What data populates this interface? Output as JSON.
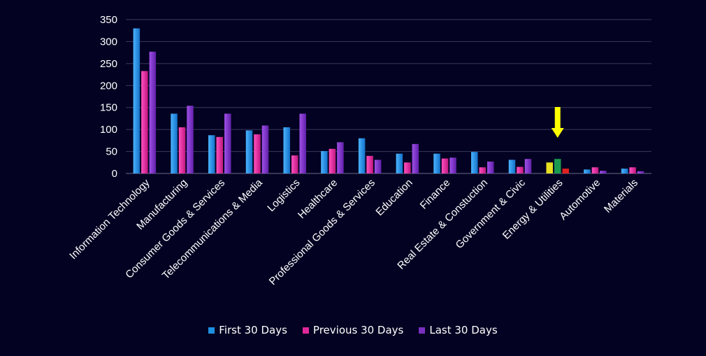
{
  "chart_data": {
    "type": "bar",
    "title": "",
    "xlabel": "",
    "ylabel": "",
    "ylim": [
      0,
      350
    ],
    "yticks": [
      0,
      50,
      100,
      150,
      200,
      250,
      300,
      350
    ],
    "grid": true,
    "legend_position": "bottom",
    "categories": [
      "Information Technology",
      "Manufacturing",
      "Consumer Goods &  Services",
      "Telecommunications & Media",
      "Logistics",
      "Healthcare",
      "Professional Goods & Services",
      "Education",
      "Finance",
      "Real Estate & Constuction",
      "Government & Civic",
      "Energy & Utilities",
      "Automotive",
      "Materials"
    ],
    "series": [
      {
        "name": "First 30 Days",
        "color": "#1e90e0",
        "values": [
          330,
          136,
          87,
          98,
          105,
          51,
          80,
          45,
          45,
          49,
          31,
          25,
          9,
          11
        ]
      },
      {
        "name": "Previous 30 Days",
        "color": "#e0289a",
        "values": [
          233,
          105,
          83,
          89,
          41,
          56,
          40,
          25,
          34,
          14,
          15,
          33,
          14,
          14
        ]
      },
      {
        "name": "Last 30 Days",
        "color": "#7a30c0",
        "values": [
          277,
          154,
          136,
          109,
          136,
          71,
          31,
          67,
          36,
          27,
          33,
          11,
          6,
          5
        ]
      }
    ],
    "highlight": {
      "category": "Energy & Utilities",
      "bar_colors": [
        "#e8e020",
        "#1a9a50",
        "#e02020"
      ],
      "arrow_color": "#ffff00"
    }
  }
}
